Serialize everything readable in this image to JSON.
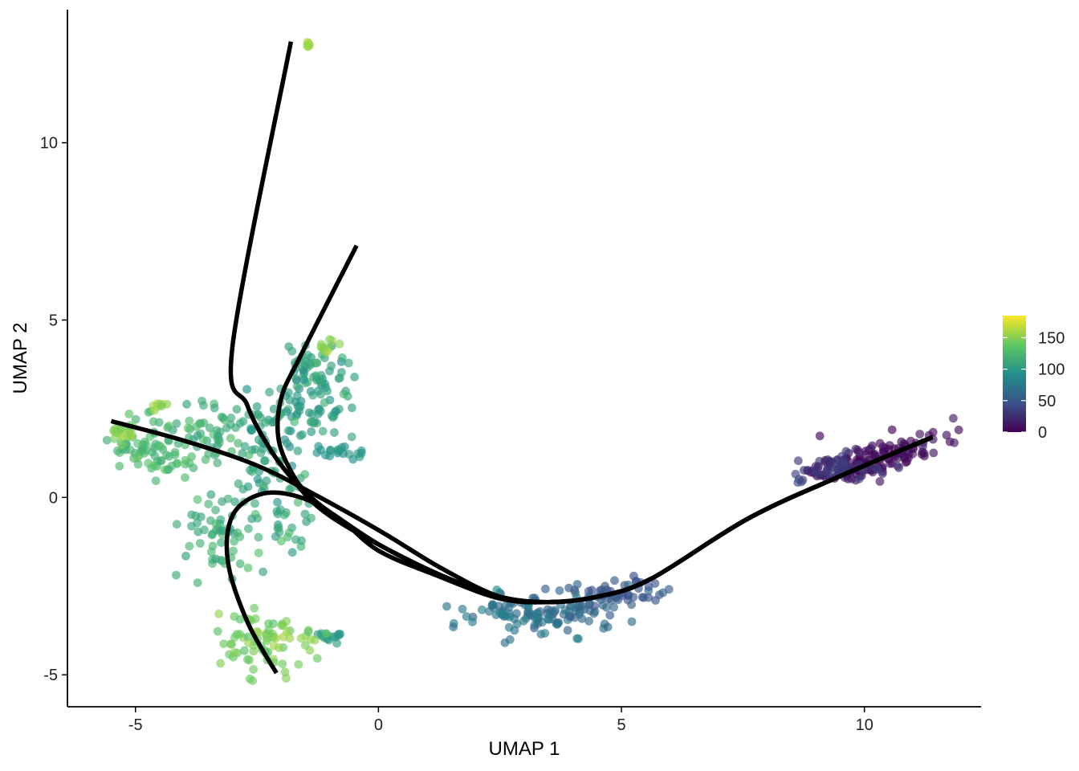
{
  "chart_data": {
    "type": "scatter",
    "title": "",
    "xlabel": "UMAP 1",
    "ylabel": "UMAP 2",
    "xlim": [
      -6.4,
      12.4
    ],
    "ylim": [
      -5.9,
      13.75
    ],
    "x_ticks": [
      -5,
      0,
      5,
      10
    ],
    "x_tick_labels": [
      "-5",
      "0",
      "5",
      "10"
    ],
    "y_ticks": [
      -5,
      0,
      5,
      10
    ],
    "y_tick_labels": [
      "-5",
      "0",
      "5",
      "10"
    ],
    "grid": false,
    "point_alpha": 0.65,
    "colorbar": {
      "palette": "viridis",
      "range": [
        0,
        185
      ],
      "ticks": [
        0,
        50,
        100,
        150
      ],
      "tick_labels": [
        "0",
        "50",
        "100",
        "150"
      ],
      "colors": [
        "#440154",
        "#3b528b",
        "#21908c",
        "#5dc863",
        "#fde725"
      ],
      "placement": "right"
    },
    "point_clusters": [
      {
        "cx": 10.2,
        "cy": 1.1,
        "sx": 0.8,
        "sy": 0.25,
        "n": 130,
        "value": 8,
        "spread": 6,
        "tilt": 0.35
      },
      {
        "cx": 9.4,
        "cy": 0.8,
        "sx": 0.35,
        "sy": 0.18,
        "n": 50,
        "value": 30,
        "spread": 6,
        "tilt": 0.0
      },
      {
        "cx": 8.65,
        "cy": 0.5,
        "sx": 0.08,
        "sy": 0.05,
        "n": 5,
        "value": 40,
        "spread": 4,
        "tilt": 0.0
      },
      {
        "cx": 5.0,
        "cy": -2.7,
        "sx": 0.5,
        "sy": 0.2,
        "n": 50,
        "value": 52,
        "spread": 6,
        "tilt": 0.0
      },
      {
        "cx": 3.9,
        "cy": -3.3,
        "sx": 0.5,
        "sy": 0.3,
        "n": 50,
        "value": 62,
        "spread": 6,
        "tilt": 0.0
      },
      {
        "cx": 2.8,
        "cy": -3.3,
        "sx": 0.6,
        "sy": 0.3,
        "n": 70,
        "value": 72,
        "spread": 6,
        "tilt": 0.0
      },
      {
        "cx": -0.8,
        "cy": 1.3,
        "sx": 0.25,
        "sy": 0.12,
        "n": 18,
        "value": 95,
        "spread": 5,
        "tilt": 0.0
      },
      {
        "cx": -1.0,
        "cy": -3.9,
        "sx": 0.2,
        "sy": 0.1,
        "n": 14,
        "value": 100,
        "spread": 5,
        "tilt": 0.0
      },
      {
        "cx": -1.0,
        "cy": 2.8,
        "sx": 0.25,
        "sy": 0.6,
        "n": 35,
        "value": 105,
        "spread": 8,
        "tilt": 0.0
      },
      {
        "cx": -1.5,
        "cy": 3.7,
        "sx": 0.3,
        "sy": 0.35,
        "n": 40,
        "value": 112,
        "spread": 8,
        "tilt": 0.0
      },
      {
        "cx": -1.7,
        "cy": 2.5,
        "sx": 0.35,
        "sy": 0.5,
        "n": 40,
        "value": 100,
        "spread": 8,
        "tilt": 0.0
      },
      {
        "cx": -2.3,
        "cy": 1.0,
        "sx": 0.45,
        "sy": 0.7,
        "n": 55,
        "value": 105,
        "spread": 8,
        "tilt": 0.0
      },
      {
        "cx": -1.9,
        "cy": -0.6,
        "sx": 0.3,
        "sy": 0.4,
        "n": 25,
        "value": 112,
        "spread": 8,
        "tilt": 0.0
      },
      {
        "cx": -3.3,
        "cy": -1.0,
        "sx": 0.45,
        "sy": 0.75,
        "n": 60,
        "value": 118,
        "spread": 8,
        "tilt": 0.0
      },
      {
        "cx": -3.2,
        "cy": 1.8,
        "sx": 0.55,
        "sy": 0.5,
        "n": 60,
        "value": 115,
        "spread": 8,
        "tilt": 0.0
      },
      {
        "cx": -4.5,
        "cy": 1.3,
        "sx": 0.5,
        "sy": 0.5,
        "n": 70,
        "value": 125,
        "spread": 8,
        "tilt": 0.0
      },
      {
        "cx": -5.3,
        "cy": 1.9,
        "sx": 0.2,
        "sy": 0.15,
        "n": 20,
        "value": 150,
        "spread": 6,
        "tilt": 0.0
      },
      {
        "cx": -4.5,
        "cy": 2.6,
        "sx": 0.15,
        "sy": 0.06,
        "n": 8,
        "value": 155,
        "spread": 5,
        "tilt": 0.0
      },
      {
        "cx": -2.3,
        "cy": -4.0,
        "sx": 0.45,
        "sy": 0.45,
        "n": 80,
        "value": 145,
        "spread": 8,
        "tilt": 0.0
      },
      {
        "cx": -1.1,
        "cy": 4.3,
        "sx": 0.12,
        "sy": 0.2,
        "n": 12,
        "value": 152,
        "spread": 6,
        "tilt": 0.0
      },
      {
        "cx": -1.43,
        "cy": 12.8,
        "sx": 0.05,
        "sy": 0.05,
        "n": 6,
        "value": 160,
        "spread": 4,
        "tilt": 0.0
      }
    ],
    "trajectories": [
      {
        "name": "",
        "points": [
          [
            11.4,
            1.7
          ],
          [
            9.5,
            0.6
          ],
          [
            7.6,
            -0.6
          ],
          [
            5.6,
            -2.3
          ],
          [
            4.5,
            -2.8
          ],
          [
            3.5,
            -2.95
          ],
          [
            2.5,
            -2.8
          ],
          [
            1.3,
            -2.2
          ],
          [
            0.1,
            -1.4
          ],
          [
            -0.8,
            -0.7
          ],
          [
            -1.3,
            -0.2
          ],
          [
            -1.7,
            0.4
          ],
          [
            -2.2,
            1.3
          ],
          [
            -2.7,
            2.6
          ],
          [
            -3.0,
            4.3
          ],
          [
            -1.8,
            12.85
          ]
        ]
      },
      {
        "name": "",
        "points": [
          [
            11.4,
            1.7
          ],
          [
            9.5,
            0.6
          ],
          [
            7.6,
            -0.6
          ],
          [
            5.6,
            -2.3
          ],
          [
            4.5,
            -2.8
          ],
          [
            3.5,
            -2.95
          ],
          [
            2.5,
            -2.8
          ],
          [
            1.3,
            -2.2
          ],
          [
            0.1,
            -1.4
          ],
          [
            -0.8,
            -0.6
          ],
          [
            -1.3,
            -0.1
          ],
          [
            -1.7,
            0.5
          ],
          [
            -2.05,
            1.6
          ],
          [
            -2.0,
            2.8
          ],
          [
            -1.6,
            4.0
          ],
          [
            -0.45,
            7.1
          ]
        ]
      },
      {
        "name": "",
        "points": [
          [
            11.4,
            1.7
          ],
          [
            9.5,
            0.6
          ],
          [
            7.6,
            -0.6
          ],
          [
            5.6,
            -2.3
          ],
          [
            4.5,
            -2.8
          ],
          [
            3.5,
            -2.95
          ],
          [
            2.5,
            -2.8
          ],
          [
            1.3,
            -2.0
          ],
          [
            0.1,
            -1.0
          ],
          [
            -1.2,
            0.0
          ],
          [
            -2.5,
            0.9
          ],
          [
            -4.0,
            1.6
          ],
          [
            -5.5,
            2.15
          ]
        ]
      },
      {
        "name": "",
        "points": [
          [
            11.4,
            1.7
          ],
          [
            9.5,
            0.6
          ],
          [
            7.6,
            -0.6
          ],
          [
            5.6,
            -2.3
          ],
          [
            4.5,
            -2.8
          ],
          [
            3.5,
            -2.95
          ],
          [
            2.5,
            -2.85
          ],
          [
            1.2,
            -2.2
          ],
          [
            0.0,
            -1.5
          ],
          [
            -0.8,
            -0.6
          ],
          [
            -1.6,
            0.0
          ],
          [
            -2.4,
            0.1
          ],
          [
            -3.0,
            -0.5
          ],
          [
            -3.1,
            -1.8
          ],
          [
            -2.7,
            -3.5
          ],
          [
            -2.1,
            -4.95
          ]
        ]
      }
    ]
  }
}
